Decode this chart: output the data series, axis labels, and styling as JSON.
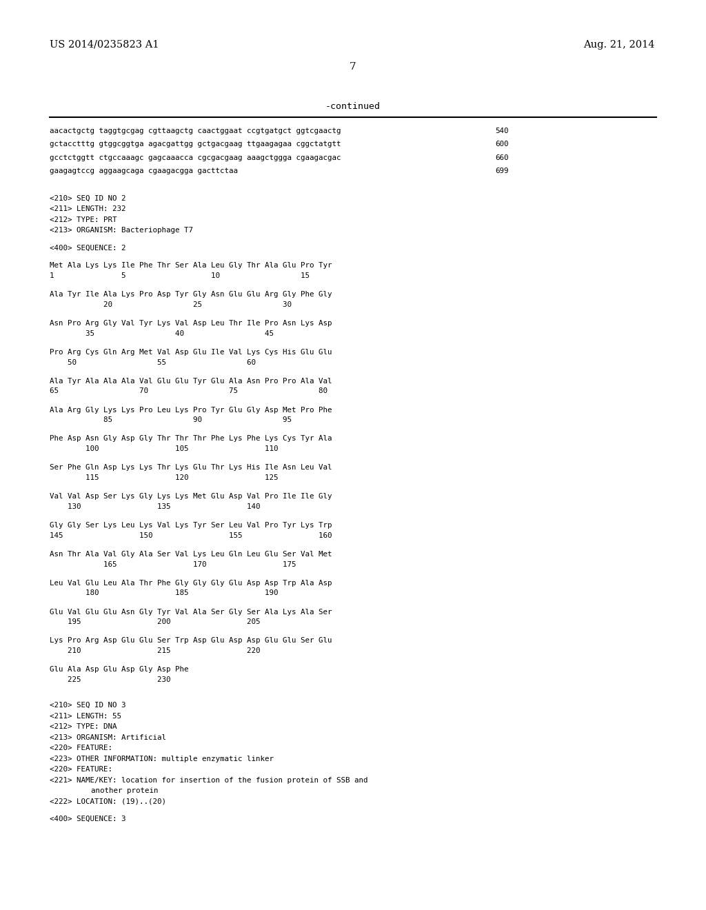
{
  "bg_color": "#ffffff",
  "header_left": "US 2014/0235823 A1",
  "header_right": "Aug. 21, 2014",
  "page_number": "7",
  "continued_label": "-continued",
  "content": [
    {
      "type": "dna_line",
      "text": "aacactgctg taggtgcgag cgttaagctg caactggaat ccgtgatgct ggtcgaactg",
      "num": "540"
    },
    {
      "type": "dna_line",
      "text": "gctacctttg gtggcggtga agacgattgg gctgacgaag ttgaagagaa cggctatgtt",
      "num": "600"
    },
    {
      "type": "dna_line",
      "text": "gcctctggtt ctgccaaagc gagcaaacca cgcgacgaag aaagctggga cgaagacgac",
      "num": "660"
    },
    {
      "type": "dna_line",
      "text": "gaagagtccg aggaagcaga cgaagacgga gacttctaa",
      "num": "699"
    },
    {
      "type": "blank"
    },
    {
      "type": "blank"
    },
    {
      "type": "meta",
      "text": "<210> SEQ ID NO 2"
    },
    {
      "type": "meta",
      "text": "<211> LENGTH: 232"
    },
    {
      "type": "meta",
      "text": "<212> TYPE: PRT"
    },
    {
      "type": "meta",
      "text": "<213> ORGANISM: Bacteriophage T7"
    },
    {
      "type": "blank"
    },
    {
      "type": "meta",
      "text": "<400> SEQUENCE: 2"
    },
    {
      "type": "blank"
    },
    {
      "type": "aa_seq",
      "seq": "Met Ala Lys Lys Ile Phe Thr Ser Ala Leu Gly Thr Ala Glu Pro Tyr",
      "nums": "1               5                   10                  15"
    },
    {
      "type": "blank"
    },
    {
      "type": "aa_seq",
      "seq": "Ala Tyr Ile Ala Lys Pro Asp Tyr Gly Asn Glu Glu Arg Gly Phe Gly",
      "nums": "            20                  25                  30"
    },
    {
      "type": "blank"
    },
    {
      "type": "aa_seq",
      "seq": "Asn Pro Arg Gly Val Tyr Lys Val Asp Leu Thr Ile Pro Asn Lys Asp",
      "nums": "        35                  40                  45"
    },
    {
      "type": "blank"
    },
    {
      "type": "aa_seq",
      "seq": "Pro Arg Cys Gln Arg Met Val Asp Glu Ile Val Lys Cys His Glu Glu",
      "nums": "    50                  55                  60"
    },
    {
      "type": "blank"
    },
    {
      "type": "aa_seq",
      "seq": "Ala Tyr Ala Ala Ala Val Glu Glu Tyr Glu Ala Asn Pro Pro Ala Val",
      "nums": "65                  70                  75                  80"
    },
    {
      "type": "blank"
    },
    {
      "type": "aa_seq",
      "seq": "Ala Arg Gly Lys Lys Pro Leu Lys Pro Tyr Glu Gly Asp Met Pro Phe",
      "nums": "            85                  90                  95"
    },
    {
      "type": "blank"
    },
    {
      "type": "aa_seq",
      "seq": "Phe Asp Asn Gly Asp Gly Thr Thr Thr Phe Lys Phe Lys Cys Tyr Ala",
      "nums": "        100                 105                 110"
    },
    {
      "type": "blank"
    },
    {
      "type": "aa_seq",
      "seq": "Ser Phe Gln Asp Lys Lys Thr Lys Glu Thr Lys His Ile Asn Leu Val",
      "nums": "        115                 120                 125"
    },
    {
      "type": "blank"
    },
    {
      "type": "aa_seq",
      "seq": "Val Val Asp Ser Lys Gly Lys Lys Met Glu Asp Val Pro Ile Ile Gly",
      "nums": "    130                 135                 140"
    },
    {
      "type": "blank"
    },
    {
      "type": "aa_seq",
      "seq": "Gly Gly Ser Lys Leu Lys Val Lys Tyr Ser Leu Val Pro Tyr Lys Trp",
      "nums": "145                 150                 155                 160"
    },
    {
      "type": "blank"
    },
    {
      "type": "aa_seq",
      "seq": "Asn Thr Ala Val Gly Ala Ser Val Lys Leu Gln Leu Glu Ser Val Met",
      "nums": "            165                 170                 175"
    },
    {
      "type": "blank"
    },
    {
      "type": "aa_seq",
      "seq": "Leu Val Glu Leu Ala Thr Phe Gly Gly Gly Glu Asp Asp Trp Ala Asp",
      "nums": "        180                 185                 190"
    },
    {
      "type": "blank"
    },
    {
      "type": "aa_seq",
      "seq": "Glu Val Glu Glu Asn Gly Tyr Val Ala Ser Gly Ser Ala Lys Ala Ser",
      "nums": "    195                 200                 205"
    },
    {
      "type": "blank"
    },
    {
      "type": "aa_seq",
      "seq": "Lys Pro Arg Asp Glu Glu Ser Trp Asp Glu Asp Asp Glu Glu Ser Glu",
      "nums": "    210                 215                 220"
    },
    {
      "type": "blank"
    },
    {
      "type": "aa_seq",
      "seq": "Glu Ala Asp Glu Asp Gly Asp Phe",
      "nums": "    225                 230"
    },
    {
      "type": "blank"
    },
    {
      "type": "blank"
    },
    {
      "type": "meta",
      "text": "<210> SEQ ID NO 3"
    },
    {
      "type": "meta",
      "text": "<211> LENGTH: 55"
    },
    {
      "type": "meta",
      "text": "<212> TYPE: DNA"
    },
    {
      "type": "meta",
      "text": "<213> ORGANISM: Artificial"
    },
    {
      "type": "meta",
      "text": "<220> FEATURE:"
    },
    {
      "type": "meta",
      "text": "<223> OTHER INFORMATION: multiple enzymatic linker"
    },
    {
      "type": "meta",
      "text": "<220> FEATURE:"
    },
    {
      "type": "meta_long",
      "text": "<221> NAME/KEY: location for insertion of the fusion protein of SSB and"
    },
    {
      "type": "meta_cont",
      "text": "another protein"
    },
    {
      "type": "meta",
      "text": "<222> LOCATION: (19)..(20)"
    },
    {
      "type": "blank"
    },
    {
      "type": "meta",
      "text": "<400> SEQUENCE: 3"
    }
  ]
}
